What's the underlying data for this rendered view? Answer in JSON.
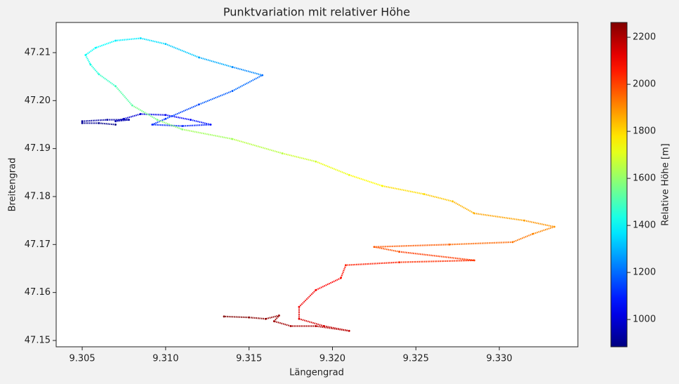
{
  "chart_data": {
    "type": "scatter",
    "title": "Punktvariation mit relativer Höhe",
    "xlabel": "Längengrad",
    "ylabel": "Breitengrad",
    "colorbar_label": "Relative Höhe [m]",
    "colormap": "jet",
    "xlim": [
      9.30344,
      9.33471
    ],
    "ylim": [
      47.14868,
      47.21629
    ],
    "xticks": [
      {
        "value": 9.305,
        "label": "9.305"
      },
      {
        "value": 9.31,
        "label": "9.310"
      },
      {
        "value": 9.315,
        "label": "9.315"
      },
      {
        "value": 9.32,
        "label": "9.320"
      },
      {
        "value": 9.325,
        "label": "9.325"
      },
      {
        "value": 9.33,
        "label": "9.330"
      }
    ],
    "yticks": [
      {
        "value": 47.15,
        "label": "47.15"
      },
      {
        "value": 47.16,
        "label": "47.16"
      },
      {
        "value": 47.17,
        "label": "47.17"
      },
      {
        "value": 47.18,
        "label": "47.18"
      },
      {
        "value": 47.19,
        "label": "47.19"
      },
      {
        "value": 47.2,
        "label": "47.20"
      },
      {
        "value": 47.21,
        "label": "47.21"
      }
    ],
    "clim": [
      884,
      2263
    ],
    "cticks": [
      1000,
      1200,
      1400,
      1600,
      1800,
      2000,
      2200
    ],
    "x": [
      9.307,
      9.306,
      9.305,
      9.305,
      9.3065,
      9.3078,
      9.307,
      9.3075,
      9.3085,
      9.31,
      9.3115,
      9.3127,
      9.311,
      9.3092,
      9.31,
      9.312,
      9.314,
      9.3158,
      9.314,
      9.312,
      9.31,
      9.3085,
      9.307,
      9.3058,
      9.3052,
      9.3055,
      9.306,
      9.307,
      9.308,
      9.3095,
      9.311,
      9.314,
      9.317,
      9.319,
      9.321,
      9.323,
      9.3255,
      9.3272,
      9.3285,
      9.3315,
      9.3333,
      9.332,
      9.3308,
      9.327,
      9.3225,
      9.324,
      9.3285,
      9.324,
      9.3208,
      9.3205,
      9.319,
      9.318,
      9.318,
      9.3195,
      9.321,
      9.319,
      9.3175,
      9.3165,
      9.3168,
      9.316,
      9.315,
      9.3135
    ],
    "y": [
      47.195,
      47.1953,
      47.1953,
      47.1957,
      47.196,
      47.196,
      47.1957,
      47.1962,
      47.1972,
      47.197,
      47.196,
      47.195,
      47.1947,
      47.195,
      47.1962,
      47.1992,
      47.202,
      47.2053,
      47.207,
      47.209,
      47.2118,
      47.213,
      47.2125,
      47.211,
      47.2095,
      47.2075,
      47.2055,
      47.203,
      47.199,
      47.196,
      47.194,
      47.192,
      47.189,
      47.1873,
      47.1845,
      47.1822,
      47.1805,
      47.179,
      47.1765,
      47.175,
      47.1737,
      47.1722,
      47.1705,
      47.17,
      47.1695,
      47.1685,
      47.1667,
      47.1663,
      47.1657,
      47.163,
      47.1605,
      47.157,
      47.1545,
      47.153,
      47.152,
      47.153,
      47.153,
      47.154,
      47.1552,
      47.1545,
      47.1548,
      47.155
    ],
    "c": [
      890,
      900,
      910,
      920,
      930,
      940,
      950,
      970,
      1000,
      1030,
      1060,
      1080,
      1100,
      1110,
      1130,
      1150,
      1180,
      1200,
      1240,
      1290,
      1330,
      1360,
      1380,
      1400,
      1410,
      1430,
      1450,
      1480,
      1520,
      1560,
      1590,
      1620,
      1650,
      1680,
      1720,
      1750,
      1790,
      1820,
      1850,
      1870,
      1890,
      1910,
      1930,
      1950,
      1970,
      1980,
      2010,
      2030,
      2050,
      2070,
      2090,
      2110,
      2130,
      2150,
      2170,
      2190,
      2210,
      2220,
      2230,
      2240,
      2250,
      2260
    ]
  }
}
